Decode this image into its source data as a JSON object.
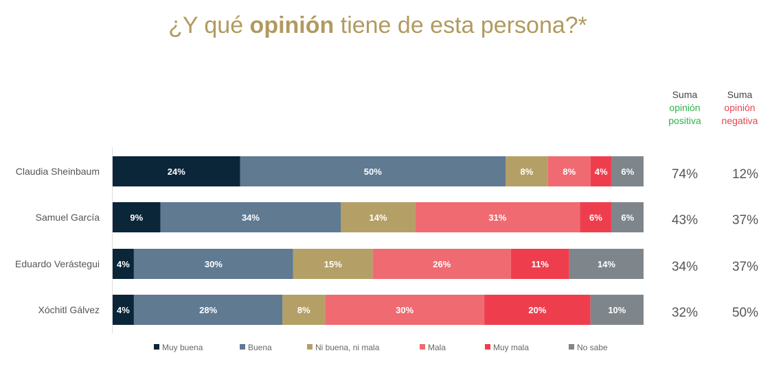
{
  "title": {
    "pre": "¿Y qué ",
    "bold": "opinión",
    "post": " tiene de esta persona?*"
  },
  "headers": {
    "positive": {
      "line1": "Suma",
      "line2": "opinión",
      "line3": "positiva"
    },
    "negative": {
      "line1": "Suma",
      "line2": "opinión",
      "line3": "negativa"
    }
  },
  "colors": {
    "title": "#b09a5e",
    "positive": "#2db34a",
    "negative": "#e8424d"
  },
  "chart_data": {
    "type": "bar",
    "orientation": "horizontal-stacked-100",
    "categories": [
      "Claudia Sheinbaum",
      "Samuel García",
      "Eduardo Verástegui",
      "Xóchitl Gálvez"
    ],
    "series": [
      {
        "name": "Muy buena",
        "color": "#0b2539",
        "values": [
          24,
          9,
          4,
          4
        ]
      },
      {
        "name": "Buena",
        "color": "#5f7a91",
        "values": [
          50,
          34,
          30,
          28
        ]
      },
      {
        "name": "Ni buena, ni mala",
        "color": "#b4a067",
        "values": [
          8,
          14,
          15,
          8
        ]
      },
      {
        "name": "Mala",
        "color": "#f06a72",
        "values": [
          8,
          31,
          26,
          30
        ]
      },
      {
        "name": "Muy mala",
        "color": "#ee3e4e",
        "values": [
          4,
          6,
          11,
          20
        ]
      },
      {
        "name": "No sabe",
        "color": "#7e868c",
        "values": [
          6,
          6,
          14,
          10
        ]
      }
    ],
    "sum_positive": [
      "74%",
      "43%",
      "34%",
      "32%"
    ],
    "sum_negative": [
      "12%",
      "37%",
      "37%",
      "50%"
    ],
    "legend": "bottom",
    "xlim": [
      0,
      100
    ]
  }
}
